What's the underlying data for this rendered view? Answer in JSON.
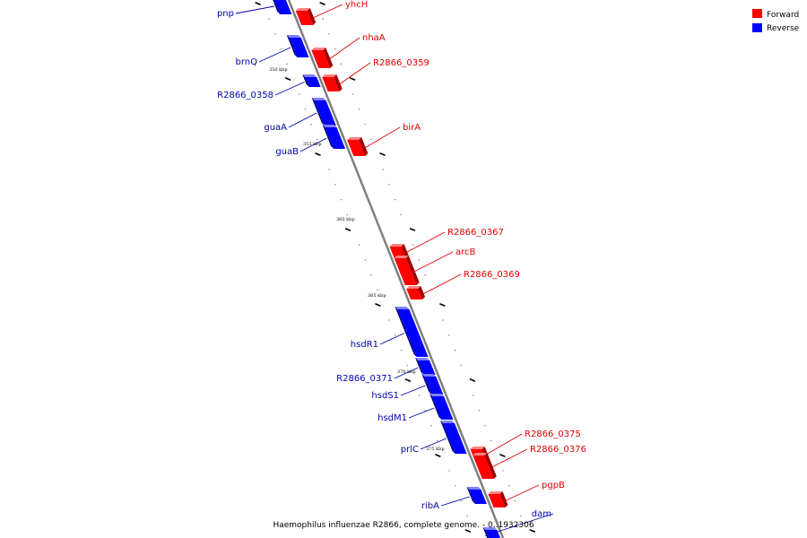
{
  "title": "Haemophilus influenzae R2866, complete genome. - 0..1932306",
  "legend": [
    {
      "label": "Forward",
      "color": "#ff0000"
    },
    {
      "label": "Reverse",
      "color": "#0000ff"
    }
  ],
  "scale_marks": [
    {
      "label": "350 kbp"
    },
    {
      "label": "355 kbp"
    },
    {
      "label": "360 kbp"
    },
    {
      "label": "365 kbp"
    },
    {
      "label": "370 kbp"
    },
    {
      "label": "375 kbp"
    }
  ],
  "genes": [
    {
      "name": "pnp",
      "strand": "reverse"
    },
    {
      "name": "yhcH",
      "strand": "forward"
    },
    {
      "name": "nhaA",
      "strand": "forward"
    },
    {
      "name": "brnQ",
      "strand": "reverse"
    },
    {
      "name": "R2866_0359",
      "strand": "forward"
    },
    {
      "name": "R2866_0358",
      "strand": "reverse"
    },
    {
      "name": "guaA",
      "strand": "reverse"
    },
    {
      "name": "birA",
      "strand": "forward"
    },
    {
      "name": "guaB",
      "strand": "reverse"
    },
    {
      "name": "R2866_0367",
      "strand": "forward"
    },
    {
      "name": "arcB",
      "strand": "forward"
    },
    {
      "name": "R2866_0369",
      "strand": "forward"
    },
    {
      "name": "hsdR1",
      "strand": "reverse"
    },
    {
      "name": "R2866_0371",
      "strand": "reverse"
    },
    {
      "name": "hsdS1",
      "strand": "reverse"
    },
    {
      "name": "hsdM1",
      "strand": "reverse"
    },
    {
      "name": "prlC",
      "strand": "reverse"
    },
    {
      "name": "R2866_0375",
      "strand": "forward"
    },
    {
      "name": "R2866_0376",
      "strand": "forward"
    },
    {
      "name": "pgpB",
      "strand": "forward"
    },
    {
      "name": "ribA",
      "strand": "reverse"
    },
    {
      "name": "dam",
      "strand": "reverse"
    }
  ]
}
